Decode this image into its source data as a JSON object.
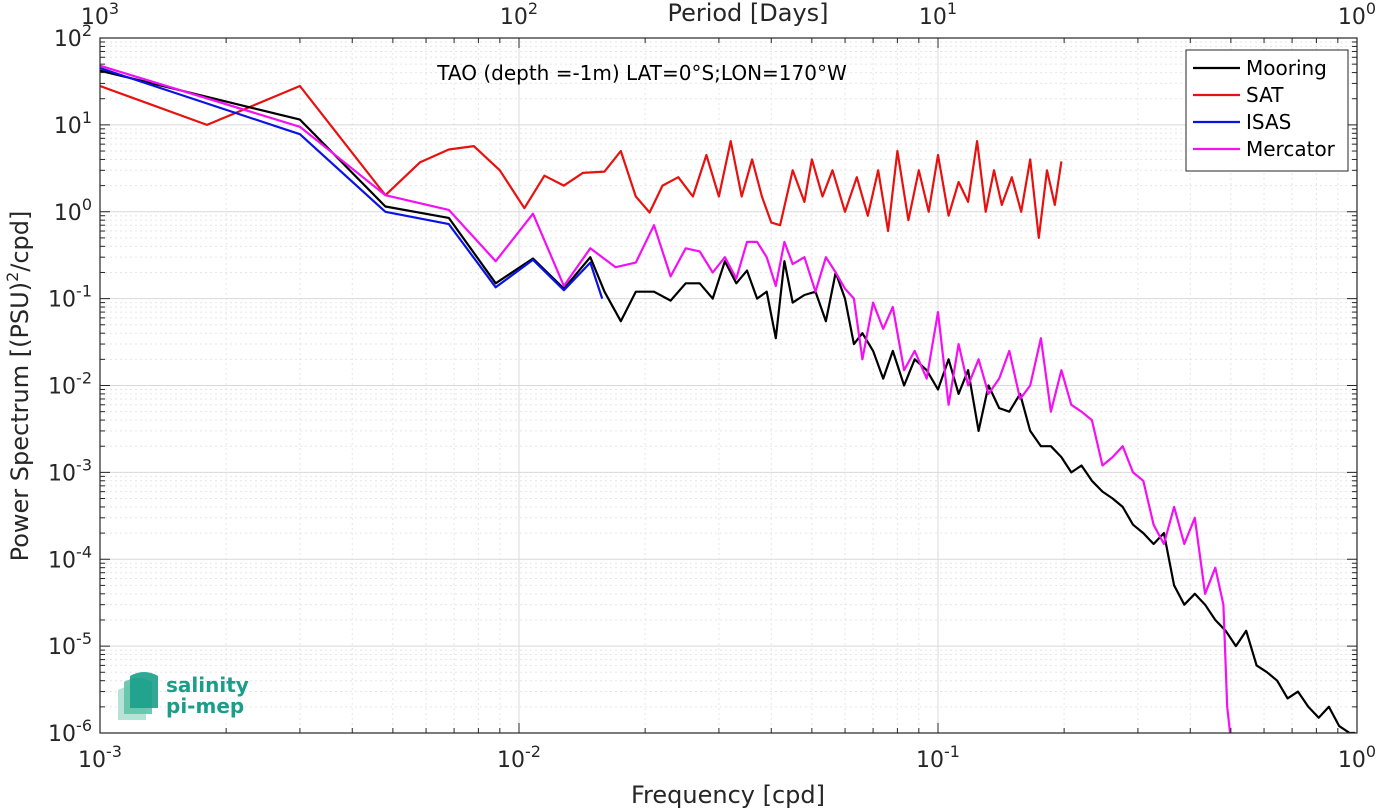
{
  "chart_data": {
    "type": "line",
    "title": "",
    "annotation": "TAO (depth =-1m) LAT=0°S;LON=170°W",
    "xlabel": "Frequency [cpd]",
    "top_xlabel": "Period [Days]",
    "ylabel_prefix": "Power Spectrum [(PSU)",
    "ylabel_sup": "2",
    "ylabel_suffix": "/cpd]",
    "x_scale": "log",
    "y_scale": "log",
    "xlim": [
      0.001,
      1
    ],
    "ylim": [
      1e-06,
      100
    ],
    "grid": true,
    "legend_position": "top-right",
    "x_ticks": [
      {
        "value": 0.001,
        "base": "10",
        "exp": "-3"
      },
      {
        "value": 0.01,
        "base": "10",
        "exp": "-2"
      },
      {
        "value": 0.1,
        "base": "10",
        "exp": "-1"
      },
      {
        "value": 1,
        "base": "10",
        "exp": "0"
      }
    ],
    "top_ticks": [
      {
        "value": 1000,
        "base": "10",
        "exp": "3"
      },
      {
        "value": 100,
        "base": "10",
        "exp": "2"
      },
      {
        "value": 10,
        "base": "10",
        "exp": "1"
      },
      {
        "value": 1,
        "base": "10",
        "exp": "0"
      }
    ],
    "y_ticks": [
      {
        "value": 100,
        "base": "10",
        "exp": "2"
      },
      {
        "value": 10,
        "base": "10",
        "exp": "1"
      },
      {
        "value": 1,
        "base": "10",
        "exp": "0"
      },
      {
        "value": 0.1,
        "base": "10",
        "exp": "-1"
      },
      {
        "value": 0.01,
        "base": "10",
        "exp": "-2"
      },
      {
        "value": 0.001,
        "base": "10",
        "exp": "-3"
      },
      {
        "value": 0.0001,
        "base": "10",
        "exp": "-4"
      },
      {
        "value": 1e-05,
        "base": "10",
        "exp": "-5"
      },
      {
        "value": 1e-06,
        "base": "10",
        "exp": "-6"
      }
    ],
    "series": [
      {
        "name": "SAT",
        "color": "#e8110f",
        "x": [
          0.001,
          0.0018,
          0.003,
          0.0048,
          0.0058,
          0.0068,
          0.0078,
          0.009,
          0.0103,
          0.0115,
          0.0128,
          0.0142,
          0.016,
          0.0175,
          0.019,
          0.0205,
          0.022,
          0.024,
          0.026,
          0.028,
          0.03,
          0.032,
          0.034,
          0.036,
          0.038,
          0.04,
          0.042,
          0.045,
          0.048,
          0.05,
          0.053,
          0.056,
          0.06,
          0.064,
          0.068,
          0.072,
          0.076,
          0.08,
          0.085,
          0.09,
          0.095,
          0.1,
          0.106,
          0.112,
          0.118,
          0.124,
          0.13,
          0.136,
          0.142,
          0.15,
          0.158,
          0.166,
          0.174,
          0.182,
          0.19,
          0.197
        ],
        "y": [
          28,
          10,
          28,
          1.55,
          3.7,
          5.2,
          5.7,
          3.0,
          1.1,
          2.6,
          2.0,
          2.8,
          2.9,
          5.0,
          1.5,
          0.98,
          2.0,
          2.5,
          1.5,
          4.5,
          1.5,
          6.5,
          1.5,
          4.0,
          1.5,
          0.75,
          0.7,
          3.0,
          1.3,
          4.0,
          1.5,
          3.0,
          1.0,
          2.5,
          0.9,
          3.0,
          0.6,
          5.0,
          0.8,
          3.0,
          1.0,
          4.5,
          0.9,
          2.2,
          1.3,
          6.5,
          1.0,
          3.0,
          1.2,
          2.5,
          1.0,
          4.0,
          0.5,
          3.0,
          1.2,
          3.8
        ]
      },
      {
        "name": "Mooring",
        "color": "#000000",
        "x": [
          0.001,
          0.003,
          0.0048,
          0.0068,
          0.0088,
          0.0108,
          0.0128,
          0.0148,
          0.016,
          0.0175,
          0.019,
          0.021,
          0.023,
          0.025,
          0.027,
          0.029,
          0.031,
          0.033,
          0.035,
          0.037,
          0.039,
          0.041,
          0.043,
          0.045,
          0.048,
          0.051,
          0.054,
          0.057,
          0.06,
          0.063,
          0.066,
          0.07,
          0.074,
          0.078,
          0.083,
          0.088,
          0.094,
          0.1,
          0.106,
          0.112,
          0.118,
          0.125,
          0.132,
          0.14,
          0.148,
          0.157,
          0.166,
          0.176,
          0.186,
          0.197,
          0.208,
          0.22,
          0.233,
          0.247,
          0.261,
          0.276,
          0.292,
          0.309,
          0.327,
          0.346,
          0.366,
          0.387,
          0.41,
          0.434,
          0.459,
          0.486,
          0.514,
          0.544,
          0.576,
          0.61,
          0.645,
          0.683,
          0.723,
          0.765,
          0.81,
          0.857,
          0.907,
          0.96,
          0.99
        ],
        "y": [
          42,
          11.5,
          1.15,
          0.85,
          0.15,
          0.29,
          0.13,
          0.3,
          0.12,
          0.055,
          0.12,
          0.12,
          0.095,
          0.15,
          0.15,
          0.1,
          0.27,
          0.15,
          0.21,
          0.1,
          0.12,
          0.035,
          0.27,
          0.09,
          0.11,
          0.12,
          0.055,
          0.2,
          0.1,
          0.03,
          0.04,
          0.025,
          0.012,
          0.025,
          0.01,
          0.02,
          0.015,
          0.009,
          0.02,
          0.008,
          0.015,
          0.003,
          0.01,
          0.0055,
          0.005,
          0.008,
          0.003,
          0.002,
          0.002,
          0.0015,
          0.001,
          0.0012,
          0.0008,
          0.0006,
          0.0005,
          0.0004,
          0.00025,
          0.0002,
          0.00015,
          0.0002,
          5e-05,
          3e-05,
          4e-05,
          3e-05,
          2e-05,
          1.5e-05,
          1e-05,
          1.5e-05,
          6e-06,
          5e-06,
          4e-06,
          2.5e-06,
          3e-06,
          2e-06,
          1.5e-06,
          2e-06,
          1.2e-06,
          1e-06,
          1e-06
        ]
      },
      {
        "name": "ISAS",
        "color": "#0a12e6",
        "x": [
          0.001,
          0.003,
          0.0048,
          0.0068,
          0.0088,
          0.0108,
          0.0128,
          0.0148,
          0.0158
        ],
        "y": [
          45,
          7.8,
          1.0,
          0.72,
          0.135,
          0.28,
          0.125,
          0.26,
          0.1
        ]
      },
      {
        "name": "Mercator",
        "color": "#f40ff4",
        "x": [
          0.001,
          0.003,
          0.0048,
          0.0068,
          0.0088,
          0.0108,
          0.0128,
          0.0148,
          0.017,
          0.019,
          0.021,
          0.023,
          0.025,
          0.027,
          0.029,
          0.031,
          0.033,
          0.035,
          0.037,
          0.039,
          0.041,
          0.043,
          0.045,
          0.048,
          0.051,
          0.054,
          0.057,
          0.06,
          0.063,
          0.066,
          0.07,
          0.074,
          0.078,
          0.083,
          0.088,
          0.094,
          0.1,
          0.106,
          0.112,
          0.118,
          0.125,
          0.132,
          0.14,
          0.148,
          0.157,
          0.166,
          0.176,
          0.186,
          0.197,
          0.208,
          0.22,
          0.233,
          0.247,
          0.261,
          0.276,
          0.292,
          0.309,
          0.327,
          0.346,
          0.366,
          0.387,
          0.41,
          0.434,
          0.459,
          0.48,
          0.49,
          0.498,
          0.503
        ],
        "y": [
          48,
          9.5,
          1.55,
          1.05,
          0.27,
          0.95,
          0.14,
          0.38,
          0.23,
          0.26,
          0.7,
          0.18,
          0.38,
          0.35,
          0.2,
          0.3,
          0.17,
          0.45,
          0.45,
          0.3,
          0.14,
          0.45,
          0.25,
          0.3,
          0.12,
          0.3,
          0.2,
          0.13,
          0.1,
          0.02,
          0.09,
          0.045,
          0.08,
          0.015,
          0.025,
          0.012,
          0.07,
          0.006,
          0.03,
          0.01,
          0.02,
          0.008,
          0.012,
          0.025,
          0.007,
          0.01,
          0.035,
          0.005,
          0.015,
          0.006,
          0.005,
          0.004,
          0.0012,
          0.0015,
          0.002,
          0.001,
          0.0008,
          0.00025,
          0.00015,
          0.0004,
          0.00015,
          0.0003,
          4e-05,
          8e-05,
          3e-05,
          2e-06,
          1e-06,
          5e-07
        ]
      }
    ],
    "legend_order": [
      "Mooring",
      "SAT",
      "ISAS",
      "Mercator"
    ]
  },
  "logo": {
    "line1": "salinity",
    "line2": "pi-mep",
    "color": "#1a9e8a"
  }
}
